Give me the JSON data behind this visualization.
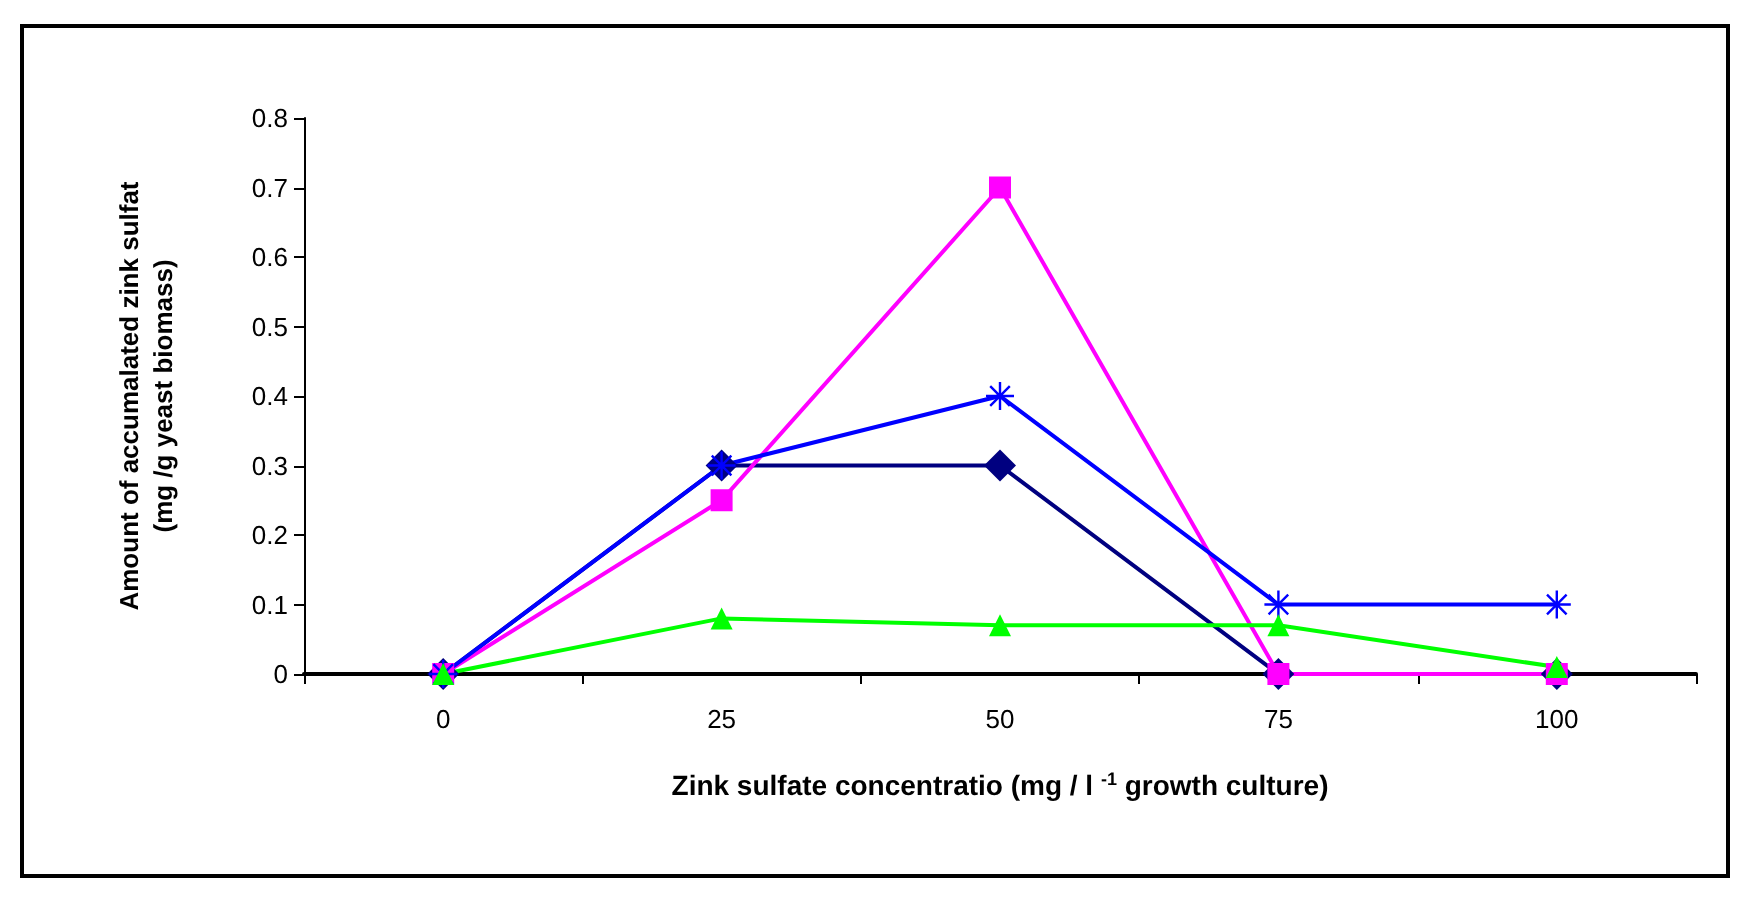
{
  "chart_data": {
    "type": "line",
    "xlabel": "Zink sulfate concentratio (mg / l $^{-1}$ growth culture)",
    "ylabel": "Amount of accumalated zink sulfat\n(mg /g yeast biomass)",
    "categories": [
      "0",
      "25",
      "50",
      "75",
      "100"
    ],
    "ylim": [
      0,
      0.8
    ],
    "yticks": [
      0,
      0.1,
      0.2,
      0.3,
      0.4,
      0.5,
      0.6,
      0.7,
      0.8
    ],
    "grid": false,
    "series": [
      {
        "color": "#000080",
        "marker": "diamond",
        "values": [
          0,
          0.3,
          0.3,
          0,
          0
        ]
      },
      {
        "color": "#ff00ff",
        "marker": "square",
        "values": [
          0,
          0.25,
          0.7,
          0,
          0
        ]
      },
      {
        "color": "#0000ff",
        "marker": "cross",
        "values": [
          0,
          0.3,
          0.4,
          0.1,
          0.1
        ]
      },
      {
        "color": "#00ff00",
        "marker": "triangle",
        "values": [
          0,
          0.08,
          0.07,
          0.07,
          0.01
        ]
      }
    ]
  }
}
